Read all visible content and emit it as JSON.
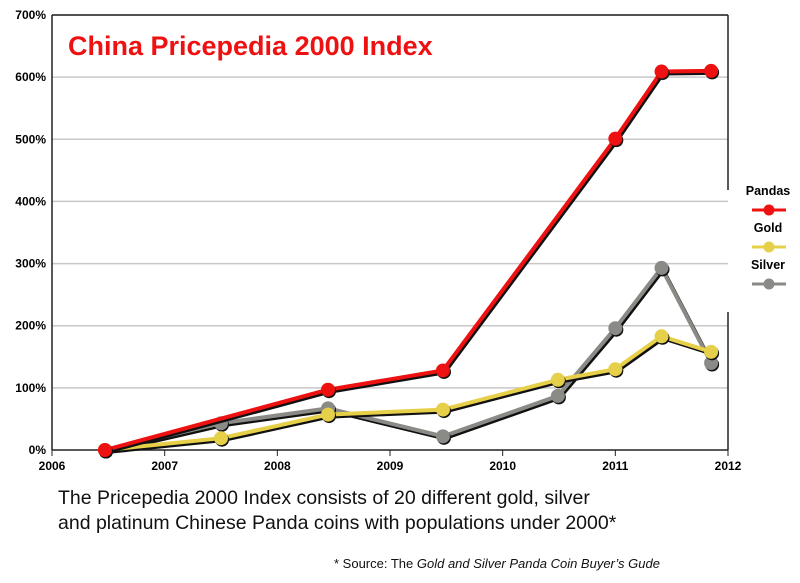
{
  "chart_data": {
    "type": "line",
    "title": "China Pricepedia 2000 Index",
    "xlabel": "",
    "ylabel": "",
    "xlim": [
      2006,
      2012
    ],
    "ylim": [
      0,
      700
    ],
    "x_ticks": [
      "2006",
      "2007",
      "2008",
      "2009",
      "2010",
      "2011",
      "2012"
    ],
    "y_ticks": [
      "0%",
      "100%",
      "200%",
      "300%",
      "400%",
      "500%",
      "600%",
      "700%"
    ],
    "grid": true,
    "legend_position": "right",
    "series": [
      {
        "name": "Pandas",
        "color": "#ee1111",
        "x": [
          2006.47,
          2008.45,
          2009.47,
          2011.0,
          2011.41,
          2011.85
        ],
        "y": [
          0,
          97,
          128,
          501,
          609,
          610
        ]
      },
      {
        "name": "Gold",
        "color": "#e6d04a",
        "x": [
          2006.47,
          2007.5,
          2008.45,
          2009.47,
          2010.49,
          2011.0,
          2011.41,
          2011.85
        ],
        "y": [
          0,
          19,
          57,
          65,
          113,
          130,
          183,
          158
        ]
      },
      {
        "name": "Silver",
        "color": "#8a8a86",
        "x": [
          2006.47,
          2007.5,
          2008.45,
          2009.47,
          2010.49,
          2011.0,
          2011.41,
          2011.85
        ],
        "y": [
          0,
          43,
          67,
          22,
          87,
          196,
          293,
          140
        ]
      }
    ]
  },
  "caption": {
    "line1": "The  Pricepedia 2000 Index consists of 20 different gold, silver",
    "line2": "and platinum Chinese Panda coins with populations under 2000*"
  },
  "source": {
    "prefix": "* Source: The ",
    "title": "Gold and Silver Panda Coin Buyer’s Gude"
  }
}
